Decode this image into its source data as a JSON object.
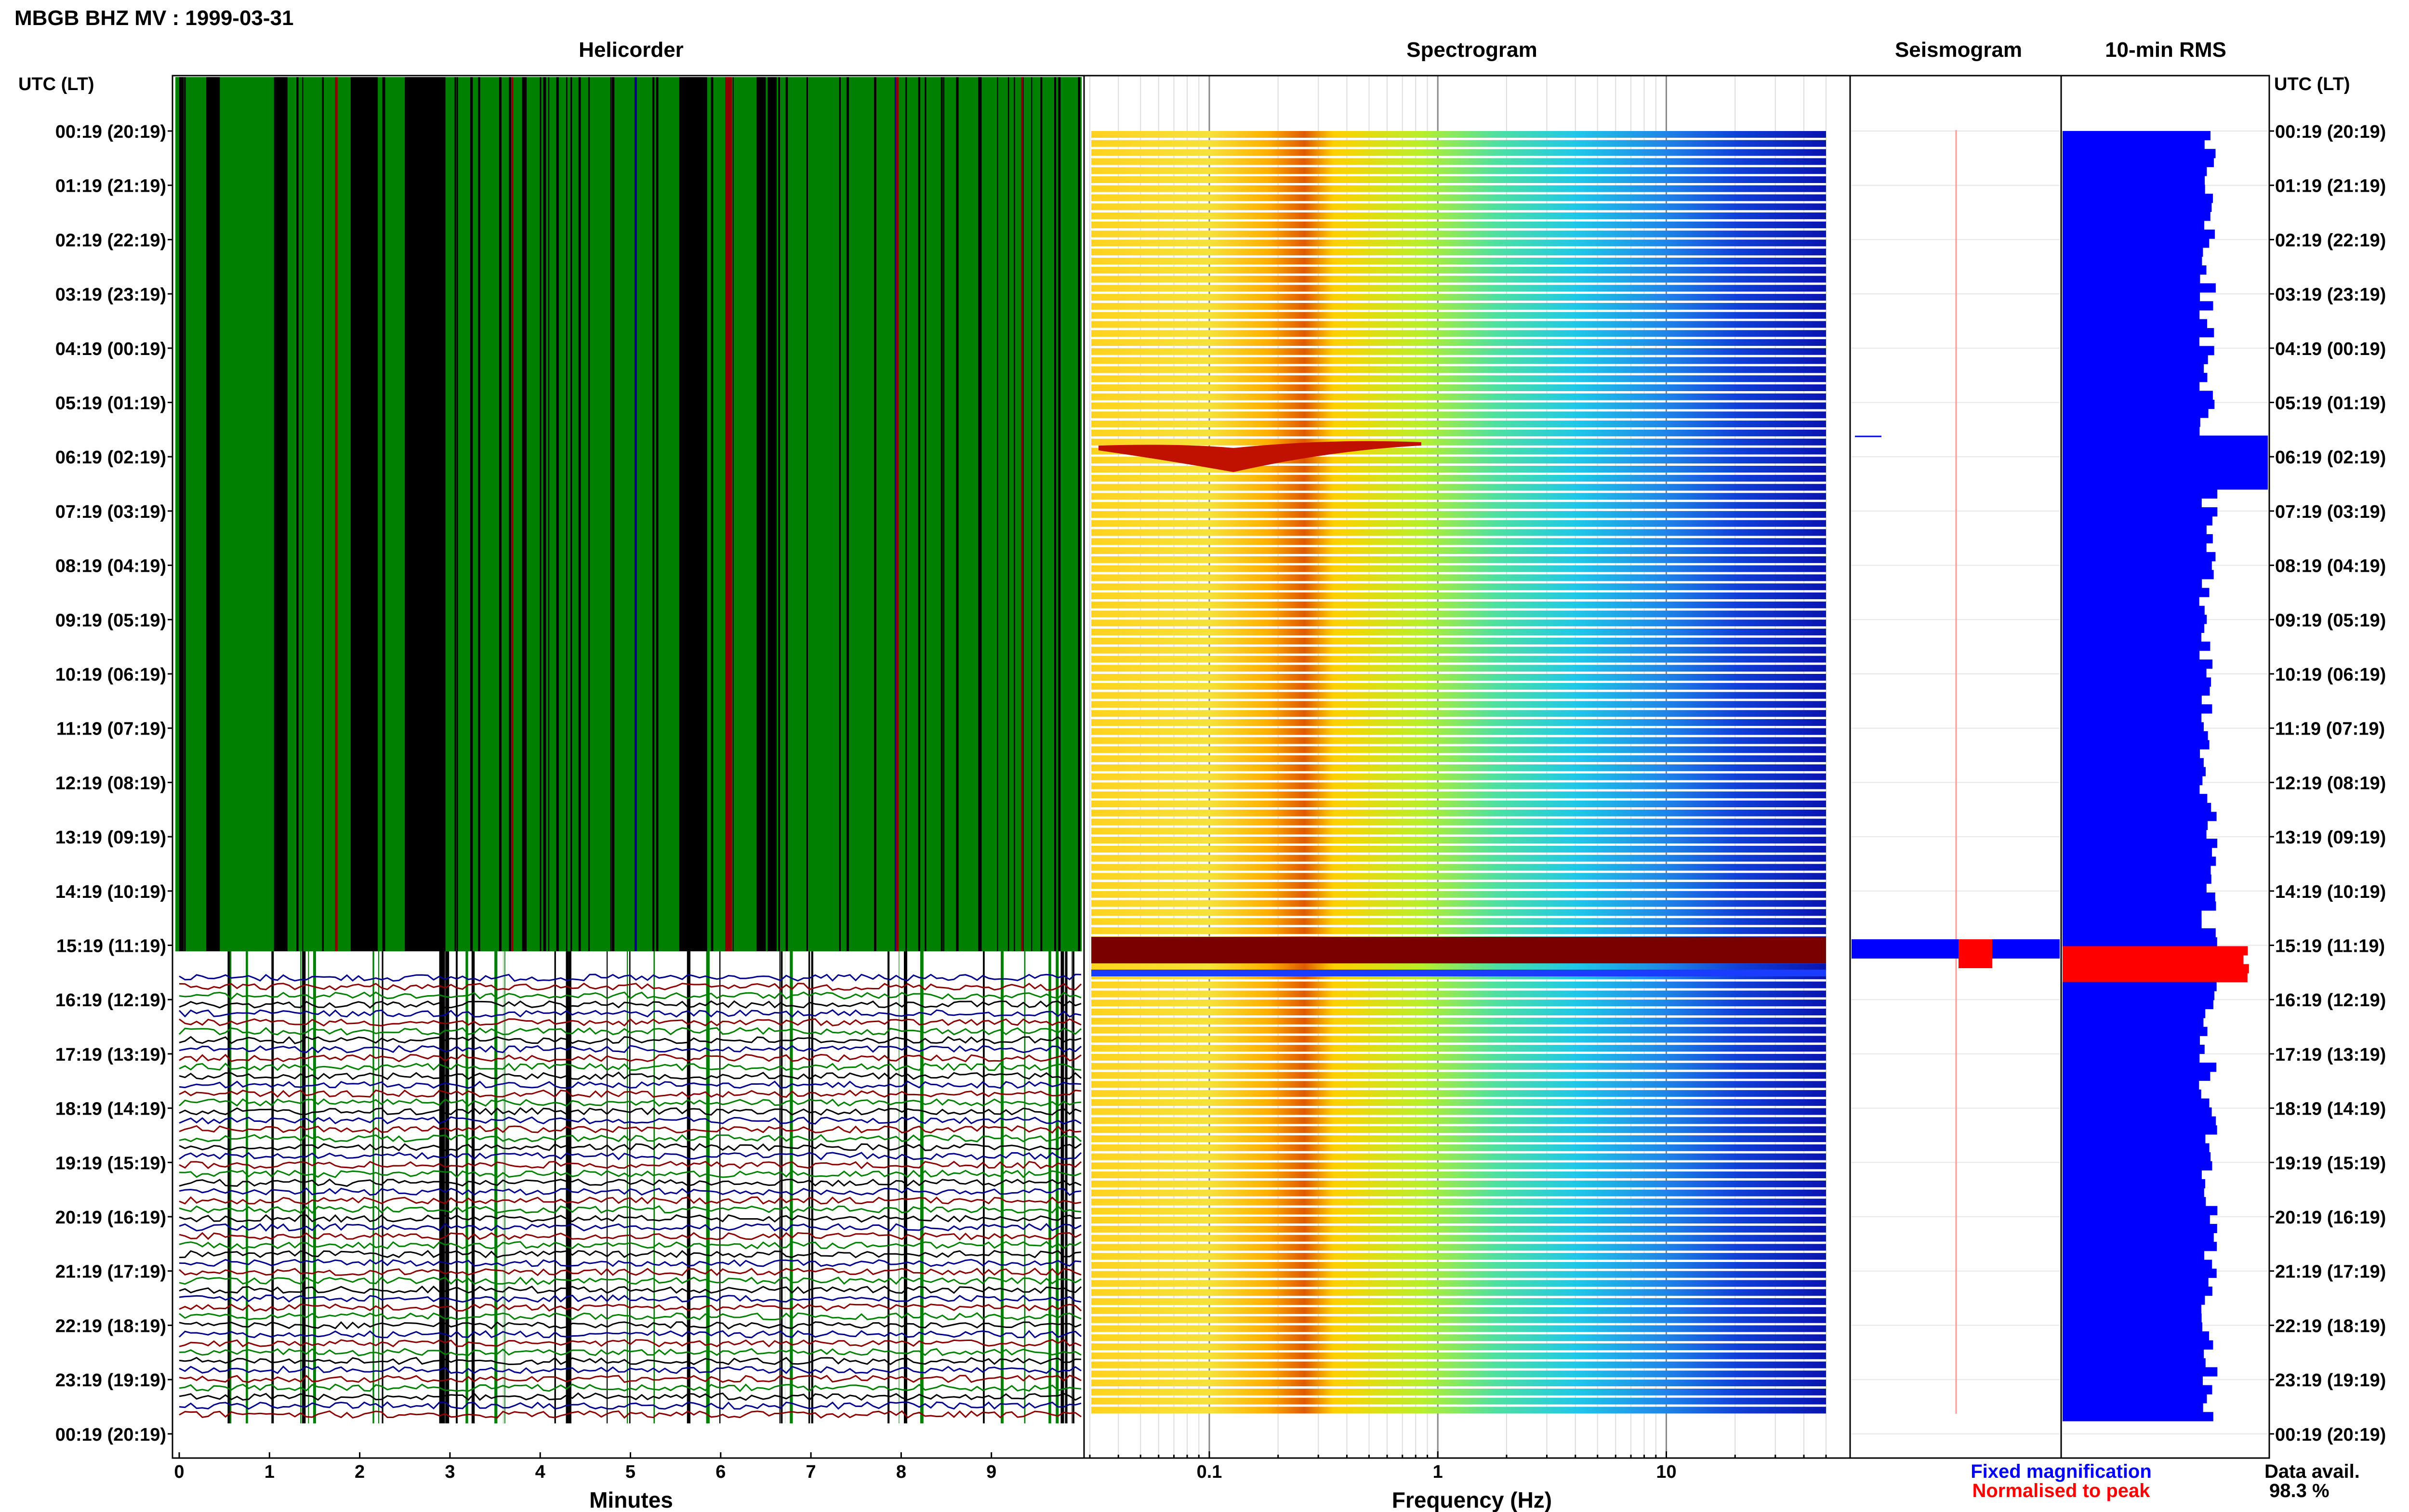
{
  "page_title": "MBGB BHZ MV : 1999-03-31",
  "panels": {
    "helicorder": "Helicorder",
    "spectrogram": "Spectrogram",
    "seismogram": "Seismogram",
    "rms": "10-min RMS"
  },
  "time_axis_header": "UTC (LT)",
  "time_labels": [
    "00:19 (20:19)",
    "01:19 (21:19)",
    "02:19 (22:19)",
    "03:19 (23:19)",
    "04:19 (00:19)",
    "05:19 (01:19)",
    "06:19 (02:19)",
    "07:19 (03:19)",
    "08:19 (04:19)",
    "09:19 (05:19)",
    "10:19 (06:19)",
    "11:19 (07:19)",
    "12:19 (08:19)",
    "13:19 (09:19)",
    "14:19 (10:19)",
    "15:19 (11:19)",
    "16:19 (12:19)",
    "17:19 (13:19)",
    "18:19 (14:19)",
    "19:19 (15:19)",
    "20:19 (16:19)",
    "21:19 (17:19)",
    "22:19 (18:19)",
    "23:19 (19:19)",
    "00:19 (20:19)"
  ],
  "helicorder_axis": {
    "label": "Minutes",
    "ticks": [
      "0",
      "1",
      "2",
      "3",
      "4",
      "5",
      "6",
      "7",
      "8",
      "9"
    ]
  },
  "spectrogram_axis": {
    "label": "Frequency (Hz)",
    "scale": "log",
    "ticks": [
      "0.1",
      "1",
      "10"
    ]
  },
  "legend": {
    "fixed": "Fixed magnification",
    "normalised": "Normalised to peak",
    "fixed_color": "#0000ff",
    "normalised_color": "#ff0000"
  },
  "data_avail": {
    "label": "Data avail.",
    "value": "98.3 %"
  },
  "colors": {
    "helicorder_green": "#008000",
    "helicorder_black": "#000000",
    "helicorder_red": "#8b0000",
    "helicorder_blue": "#00008b",
    "rms_bar": "#0000ff",
    "rms_peak": "#ff0000",
    "spectrogram_event": "#7a0000"
  },
  "chart_data": [
    {
      "type": "heatmap",
      "title": "Helicorder",
      "xlabel": "Minutes",
      "xlim": [
        0,
        10
      ],
      "description_rows": 144,
      "saturated_until": "15:19"
    },
    {
      "type": "heatmap",
      "title": "Spectrogram",
      "xlabel": "Frequency (Hz)",
      "xscale": "log",
      "xlim": [
        0.03,
        50
      ],
      "peak_band_hz": 0.2,
      "event_rows": [
        "06:19",
        "15:19"
      ]
    },
    {
      "type": "line",
      "title": "Seismogram",
      "event_rows": [
        "15:19"
      ]
    },
    {
      "type": "bar",
      "title": "10-min RMS",
      "orientation": "horizontal",
      "rows": 144,
      "baseline_fraction": 0.71,
      "peak_rows": [
        "06:19",
        "15:19"
      ]
    }
  ]
}
